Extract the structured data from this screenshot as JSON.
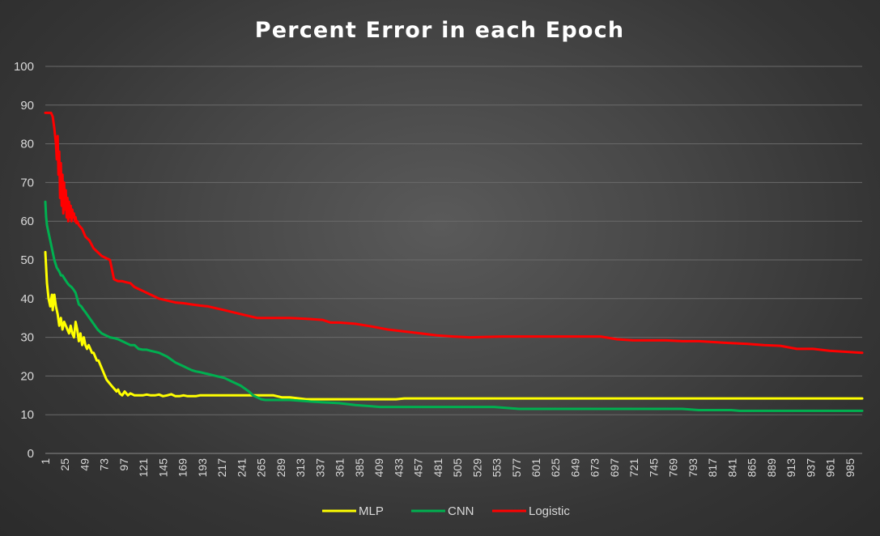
{
  "chart_data": {
    "type": "line",
    "title": "Percent Error in each Epoch",
    "xlabel": "",
    "ylabel": "",
    "ylim": [
      0,
      100
    ],
    "yticks": [
      0,
      10,
      20,
      30,
      40,
      50,
      60,
      70,
      80,
      90,
      100
    ],
    "xlim": [
      1,
      1000
    ],
    "xticks": [
      1,
      25,
      49,
      73,
      97,
      121,
      145,
      169,
      193,
      217,
      241,
      265,
      289,
      313,
      337,
      361,
      385,
      409,
      433,
      457,
      481,
      505,
      529,
      553,
      577,
      601,
      625,
      649,
      673,
      697,
      721,
      745,
      769,
      793,
      817,
      841,
      865,
      889,
      913,
      937,
      961,
      985
    ],
    "grid": true,
    "legend_position": "bottom",
    "series": [
      {
        "name": "MLP",
        "color": "#ffff00",
        "x": [
          1,
          2,
          3,
          5,
          7,
          9,
          10,
          12,
          14,
          16,
          18,
          20,
          22,
          24,
          26,
          28,
          30,
          32,
          34,
          36,
          38,
          40,
          42,
          44,
          46,
          48,
          50,
          52,
          54,
          56,
          58,
          60,
          62,
          64,
          66,
          68,
          70,
          72,
          74,
          76,
          78,
          80,
          82,
          84,
          86,
          88,
          90,
          92,
          95,
          98,
          100,
          102,
          105,
          108,
          110,
          115,
          120,
          125,
          130,
          135,
          140,
          145,
          150,
          155,
          160,
          165,
          170,
          175,
          180,
          185,
          190,
          200,
          220,
          240,
          260,
          280,
          290,
          300,
          320,
          340,
          360,
          380,
          400,
          420,
          430,
          440,
          460,
          500,
          600,
          700,
          800,
          900,
          1000
        ],
        "y": [
          52,
          48,
          44,
          40,
          38,
          41,
          37,
          41,
          38,
          36,
          33,
          35,
          32,
          34,
          33,
          32,
          31,
          33,
          31,
          30,
          34,
          32,
          29,
          31,
          28,
          30,
          28,
          27,
          28,
          27,
          26,
          26,
          25,
          24,
          24,
          23,
          22,
          21,
          20,
          19,
          18.5,
          18,
          17.5,
          17,
          16.5,
          16,
          16.5,
          15.5,
          15,
          16,
          15.5,
          15,
          15.5,
          15.2,
          15,
          15,
          15,
          15.2,
          15,
          15,
          15.2,
          14.8,
          15,
          15.3,
          14.8,
          14.8,
          15,
          14.8,
          14.8,
          14.8,
          15,
          15,
          15,
          15,
          15,
          15,
          14.5,
          14.5,
          14,
          14,
          14,
          14,
          14,
          14,
          14,
          14.2,
          14.2,
          14.2,
          14.2,
          14.2,
          14.2,
          14.2,
          14.2
        ]
      },
      {
        "name": "CNN",
        "color": "#00b050",
        "x": [
          1,
          2,
          3,
          5,
          8,
          10,
          12,
          15,
          18,
          20,
          22,
          25,
          28,
          30,
          33,
          35,
          38,
          40,
          42,
          45,
          48,
          50,
          55,
          60,
          65,
          70,
          75,
          80,
          85,
          90,
          95,
          100,
          105,
          110,
          115,
          120,
          125,
          130,
          140,
          150,
          160,
          170,
          175,
          180,
          185,
          190,
          200,
          210,
          220,
          230,
          240,
          250,
          255,
          260,
          265,
          270,
          280,
          300,
          320,
          340,
          360,
          380,
          400,
          410,
          450,
          500,
          550,
          580,
          600,
          700,
          780,
          800,
          840,
          850,
          900,
          1000
        ],
        "y": [
          65,
          61,
          59,
          57,
          54,
          52,
          50,
          48,
          47,
          46,
          46,
          45,
          44,
          43.5,
          43,
          42.5,
          41.5,
          40,
          38.5,
          38,
          37,
          36.5,
          35,
          33.5,
          32,
          31,
          30.5,
          30,
          29.8,
          29.5,
          29,
          28.5,
          28,
          28,
          27,
          26.8,
          26.8,
          26.5,
          26,
          25,
          23.5,
          22.5,
          22,
          21.5,
          21.2,
          21,
          20.5,
          20,
          19.5,
          18.5,
          17.5,
          16,
          15,
          14.5,
          14,
          13.8,
          13.8,
          13.8,
          13.5,
          13.2,
          13,
          12.5,
          12.2,
          12,
          12,
          12,
          12,
          11.5,
          11.5,
          11.5,
          11.5,
          11.2,
          11.2,
          11,
          11,
          11
        ]
      },
      {
        "name": "Logistic",
        "color": "#ff0000",
        "x": [
          1,
          5,
          8,
          10,
          12,
          14,
          15,
          16,
          17,
          18,
          19,
          20,
          21,
          22,
          23,
          24,
          25,
          26,
          27,
          28,
          29,
          30,
          31,
          32,
          33,
          34,
          35,
          36,
          37,
          38,
          39,
          40,
          42,
          44,
          46,
          48,
          50,
          55,
          60,
          65,
          70,
          75,
          80,
          85,
          90,
          95,
          100,
          105,
          110,
          115,
          120,
          125,
          130,
          140,
          150,
          160,
          170,
          180,
          190,
          200,
          220,
          240,
          260,
          280,
          300,
          320,
          340,
          350,
          360,
          380,
          400,
          420,
          440,
          460,
          480,
          500,
          520,
          560,
          600,
          640,
          660,
          680,
          700,
          720,
          760,
          780,
          800,
          840,
          860,
          880,
          900,
          920,
          940,
          960,
          1000
        ],
        "y": [
          88,
          88,
          88,
          87,
          84,
          80,
          76,
          82,
          72,
          78,
          66,
          75,
          64,
          72,
          62,
          70,
          63,
          68,
          61,
          66,
          60,
          65,
          61,
          64,
          60,
          63,
          61,
          62,
          60,
          61,
          59.5,
          60,
          59,
          58.5,
          58,
          57,
          56,
          55,
          53,
          52,
          51,
          50.5,
          50,
          45,
          44.5,
          44.5,
          44.2,
          44,
          43,
          42.5,
          42,
          41.5,
          41,
          40,
          39.5,
          39,
          38.8,
          38.5,
          38.2,
          38,
          37,
          36,
          35,
          35,
          35,
          34.8,
          34.5,
          33.8,
          33.8,
          33.5,
          32.8,
          32,
          31.5,
          31,
          30.5,
          30.2,
          30,
          30.2,
          30.2,
          30.2,
          30.2,
          30.2,
          29.5,
          29.2,
          29.2,
          29,
          29,
          28.5,
          28.3,
          28,
          27.8,
          27,
          27,
          26.5,
          26
        ]
      }
    ]
  }
}
